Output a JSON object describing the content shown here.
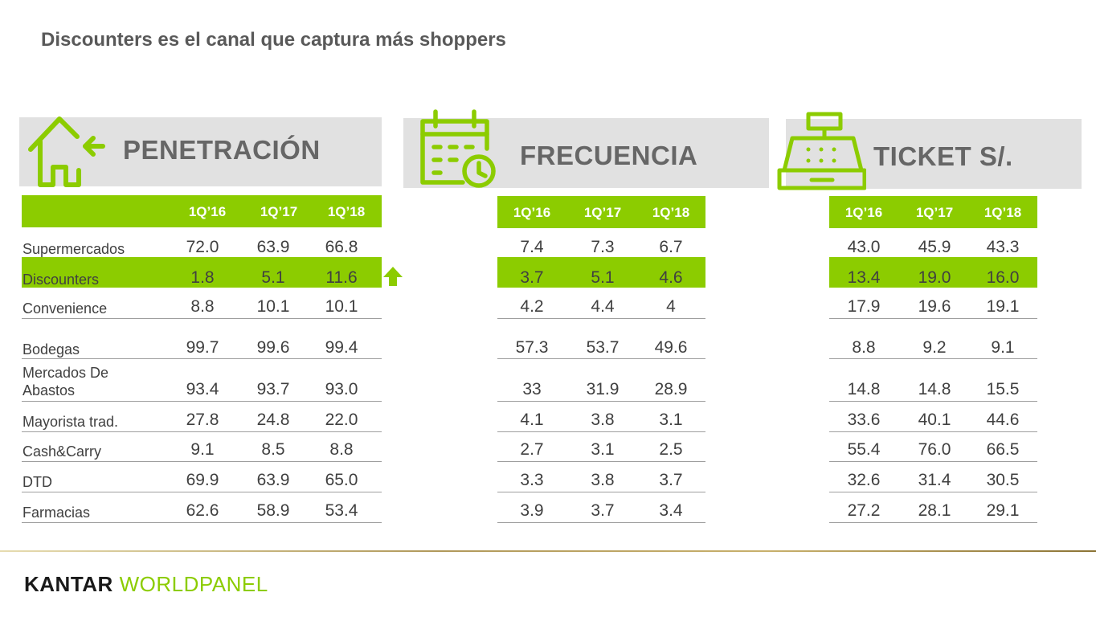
{
  "title": "Discounters es el canal que captura más shoppers",
  "colors": {
    "accent": "#8ccc00",
    "header_bg": "#e1e1e1"
  },
  "sections": {
    "penetracion": {
      "label": "PENETRACIÓN",
      "icon": "house-arrow-icon"
    },
    "frecuencia": {
      "label": "FRECUENCIA",
      "icon": "calendar-clock-icon"
    },
    "ticket": {
      "label": "TICKET S/.",
      "icon": "cash-register-icon"
    }
  },
  "columns": [
    "1Q’16",
    "1Q’17",
    "1Q’18"
  ],
  "rows": [
    {
      "label": "Supermercados",
      "pen": [
        "72.0",
        "63.9",
        "66.8"
      ],
      "freq": [
        "7.4",
        "7.3",
        "6.7"
      ],
      "ticket": [
        "43.0",
        "45.9",
        "43.3"
      ]
    },
    {
      "label": "Discounters",
      "pen": [
        "1.8",
        "5.1",
        "11.6"
      ],
      "freq": [
        "3.7",
        "5.1",
        "4.6"
      ],
      "ticket": [
        "13.4",
        "19.0",
        "16.0"
      ]
    },
    {
      "label": "Convenience",
      "pen": [
        "8.8",
        "10.1",
        "10.1"
      ],
      "freq": [
        "4.2",
        "4.4",
        "4"
      ],
      "ticket": [
        "17.9",
        "19.6",
        "19.1"
      ]
    },
    {
      "label": "Bodegas",
      "pen": [
        "99.7",
        "99.6",
        "99.4"
      ],
      "freq": [
        "57.3",
        "53.7",
        "49.6"
      ],
      "ticket": [
        "8.8",
        "9.2",
        "9.1"
      ]
    },
    {
      "label": "Mercados De Abastos",
      "label_line1": "Mercados De",
      "label_line2": "Abastos",
      "pen": [
        "93.4",
        "93.7",
        "93.0"
      ],
      "freq": [
        "33",
        "31.9",
        "28.9"
      ],
      "ticket": [
        "14.8",
        "14.8",
        "15.5"
      ]
    },
    {
      "label": "Mayorista trad.",
      "pen": [
        "27.8",
        "24.8",
        "22.0"
      ],
      "freq": [
        "4.1",
        "3.8",
        "3.1"
      ],
      "ticket": [
        "33.6",
        "40.1",
        "44.6"
      ]
    },
    {
      "label": "Cash&Carry",
      "pen": [
        "9.1",
        "8.5",
        "8.8"
      ],
      "freq": [
        "2.7",
        "3.1",
        "2.5"
      ],
      "ticket": [
        "55.4",
        "76.0",
        "66.5"
      ]
    },
    {
      "label": "DTD",
      "pen": [
        "69.9",
        "63.9",
        "65.0"
      ],
      "freq": [
        "3.3",
        "3.8",
        "3.7"
      ],
      "ticket": [
        "32.6",
        "31.4",
        "30.5"
      ]
    },
    {
      "label": "Farmacias",
      "pen": [
        "62.6",
        "58.9",
        "53.4"
      ],
      "freq": [
        "3.9",
        "3.7",
        "3.4"
      ],
      "ticket": [
        "27.2",
        "28.1",
        "29.1"
      ]
    }
  ],
  "highlight_row": "Discounters",
  "trend_icon": "up-arrow-icon",
  "brand": {
    "part1": "KANTAR ",
    "part2": "WORLDPANEL"
  }
}
